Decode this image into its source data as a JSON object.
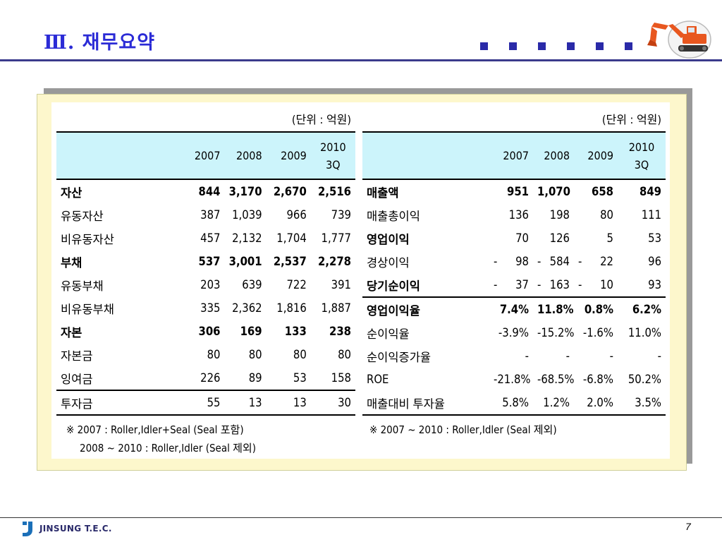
{
  "slide": {
    "title": "Ⅲ. 재무요약",
    "page_number": "7",
    "company_logo_text": "JINSUNG T.E.C.",
    "brand_colors": {
      "title": "#2b2bd6",
      "squares": "#2a2aa8",
      "header_fill": "#ccf4fb",
      "panel_fill": "#fdf7cc",
      "excavator": "#e8571f"
    }
  },
  "left_table": {
    "unit": "(단위 : 억원)",
    "headers": [
      "",
      "2007",
      "2008",
      "2009",
      "2010\n3Q"
    ],
    "rows": [
      {
        "label": "자산",
        "values": [
          "844",
          "3,170",
          "2,670",
          "2,516"
        ],
        "bold": true
      },
      {
        "label": "유동자산",
        "values": [
          "387",
          "1,039",
          "966",
          "739"
        ],
        "bold": false
      },
      {
        "label": "비유동자산",
        "values": [
          "457",
          "2,132",
          "1,704",
          "1,777"
        ],
        "bold": false
      },
      {
        "label": "부채",
        "values": [
          "537",
          "3,001",
          "2,537",
          "2,278"
        ],
        "bold": true
      },
      {
        "label": "유동부채",
        "values": [
          "203",
          "639",
          "722",
          "391"
        ],
        "bold": false
      },
      {
        "label": "비유동부채",
        "values": [
          "335",
          "2,362",
          "1,816",
          "1,887"
        ],
        "bold": false
      },
      {
        "label": "자본",
        "values": [
          "306",
          "169",
          "133",
          "238"
        ],
        "bold": true
      },
      {
        "label": "자본금",
        "values": [
          "80",
          "80",
          "80",
          "80"
        ],
        "bold": false
      },
      {
        "label": "잉여금",
        "values": [
          "226",
          "89",
          "53",
          "158"
        ],
        "bold": false
      },
      {
        "label": "투자금",
        "values": [
          "55",
          "13",
          "13",
          "30"
        ],
        "bold": false
      }
    ],
    "notes": [
      "※ 2007 : Roller,Idler+Seal (Seal 포함)",
      "2008 ~ 2010 : Roller,Idler (Seal 제외)"
    ]
  },
  "right_table": {
    "unit": "(단위 : 억원)",
    "headers": [
      "",
      "2007",
      "2008",
      "2009",
      "2010\n3Q"
    ],
    "rows": [
      {
        "label": "매출액",
        "values": [
          "951",
          "1,070",
          "658",
          "849"
        ],
        "bold": true
      },
      {
        "label": "매출총이익",
        "values": [
          "136",
          "198",
          "80",
          "111"
        ],
        "bold": false
      },
      {
        "label": "영업이익",
        "values": [
          "70",
          "126",
          "5",
          "53"
        ],
        "bold": false,
        "bold_label": true
      },
      {
        "label": "경상이익",
        "values": [
          "-   98",
          "-   584",
          "-   22",
          "96"
        ],
        "bold": false
      },
      {
        "label": "당기순이익",
        "values": [
          "-   37",
          "-   163",
          "-   10",
          "93"
        ],
        "bold": false,
        "bold_label": true
      },
      {
        "label": "영업이익율",
        "values": [
          "7.4%",
          "11.8%",
          "0.8%",
          "6.2%"
        ],
        "bold": true
      },
      {
        "label": "순이익율",
        "values": [
          "-3.9%",
          "-15.2%",
          "-1.6%",
          "11.0%"
        ],
        "bold": false
      },
      {
        "label": "순이익증가율",
        "values": [
          "-",
          "-",
          "-",
          "-"
        ],
        "bold": false
      },
      {
        "label": "ROE",
        "values": [
          "-21.8%",
          "-68.5%",
          "-6.8%",
          "50.2%"
        ],
        "bold": false
      },
      {
        "label": "매출대비 투자율",
        "values": [
          "5.8%",
          "1.2%",
          "2.0%",
          "3.5%"
        ],
        "bold": false
      }
    ],
    "notes": [
      "※ 2007 ~ 2010 : Roller,Idler (Seal 제외)"
    ]
  }
}
